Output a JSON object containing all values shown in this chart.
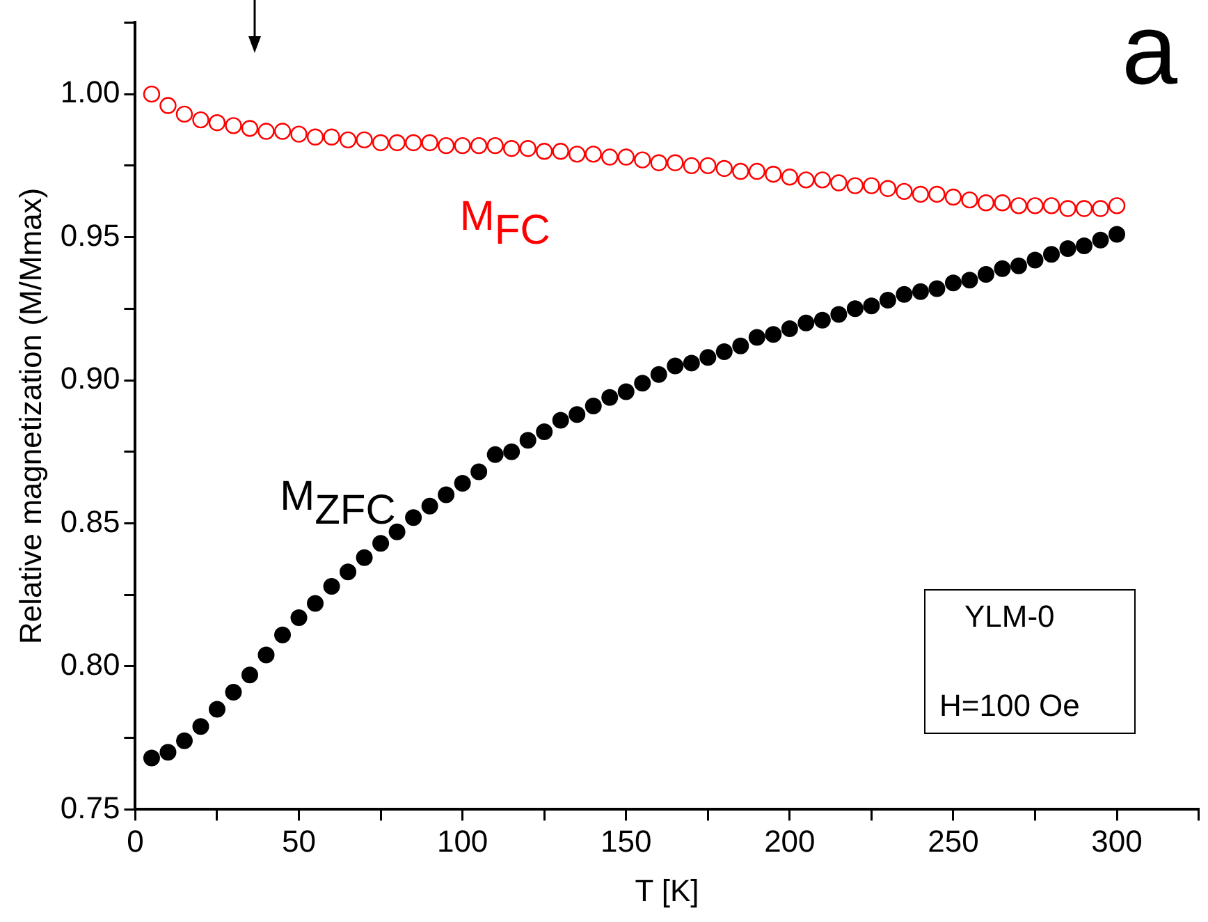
{
  "chart_data": {
    "type": "scatter",
    "xlabel": "T [K]",
    "ylabel": "Relative magnetization (M/Mmax)",
    "x": [
      5,
      10,
      15,
      20,
      25,
      30,
      35,
      40,
      45,
      50,
      55,
      60,
      65,
      70,
      75,
      80,
      85,
      90,
      95,
      100,
      105,
      110,
      115,
      120,
      125,
      130,
      135,
      140,
      145,
      150,
      155,
      160,
      165,
      170,
      175,
      180,
      185,
      190,
      195,
      200,
      205,
      210,
      215,
      220,
      225,
      230,
      235,
      240,
      245,
      250,
      255,
      260,
      265,
      270,
      275,
      280,
      285,
      290,
      295,
      300
    ],
    "series": [
      {
        "name": "M$_{FC}$",
        "color": "#ff0000",
        "values": [
          1.0,
          0.996,
          0.993,
          0.991,
          0.99,
          0.989,
          0.988,
          0.987,
          0.987,
          0.986,
          0.985,
          0.985,
          0.984,
          0.984,
          0.983,
          0.983,
          0.983,
          0.983,
          0.982,
          0.982,
          0.982,
          0.982,
          0.981,
          0.981,
          0.98,
          0.98,
          0.979,
          0.979,
          0.978,
          0.978,
          0.977,
          0.976,
          0.976,
          0.975,
          0.975,
          0.974,
          0.973,
          0.973,
          0.972,
          0.971,
          0.97,
          0.97,
          0.969,
          0.968,
          0.968,
          0.967,
          0.966,
          0.965,
          0.965,
          0.964,
          0.963,
          0.962,
          0.962,
          0.961,
          0.961,
          0.961,
          0.96,
          0.96,
          0.96,
          0.961
        ]
      },
      {
        "name": "M$_{ZFC}$",
        "color": "#000000",
        "values": [
          0.768,
          0.77,
          0.774,
          0.779,
          0.785,
          0.791,
          0.797,
          0.804,
          0.811,
          0.817,
          0.822,
          0.828,
          0.833,
          0.838,
          0.843,
          0.847,
          0.852,
          0.856,
          0.86,
          0.864,
          0.868,
          0.874,
          0.875,
          0.879,
          0.882,
          0.886,
          0.888,
          0.891,
          0.894,
          0.896,
          0.899,
          0.902,
          0.905,
          0.906,
          0.908,
          0.91,
          0.912,
          0.915,
          0.916,
          0.918,
          0.92,
          0.921,
          0.923,
          0.925,
          0.926,
          0.928,
          0.93,
          0.931,
          0.932,
          0.934,
          0.935,
          0.937,
          0.939,
          0.94,
          0.942,
          0.944,
          0.946,
          0.947,
          0.949,
          0.951
        ]
      }
    ],
    "xlim": [
      0,
      325
    ],
    "xticks": [
      0,
      {
        "value": 25,
        "label": null
      },
      50,
      {
        "value": 75,
        "label": null
      },
      100,
      {
        "value": 125,
        "label": null
      },
      150,
      {
        "value": 175,
        "label": null
      },
      200,
      {
        "value": 225,
        "label": null
      },
      250,
      {
        "value": 275,
        "label": null
      },
      300,
      {
        "value": 325,
        "label": null
      }
    ],
    "ylim": [
      0.75,
      1.025
    ],
    "yticks": [
      {
        "value": 0.75,
        "label": "0.75"
      },
      {
        "value": 0.775,
        "label": null
      },
      {
        "value": 0.8,
        "label": "0.80"
      },
      {
        "value": 0.825,
        "label": null
      },
      {
        "value": 0.85,
        "label": "0.85"
      },
      {
        "value": 0.875,
        "label": null
      },
      {
        "value": 0.9,
        "label": "0.90"
      },
      {
        "value": 0.925,
        "label": null
      },
      {
        "value": 0.95,
        "label": "0.95"
      },
      {
        "value": 0.975,
        "label": null
      },
      {
        "value": 1.0,
        "label": "1.00"
      },
      {
        "value": 1.025,
        "label": null
      }
    ],
    "marker": "circle",
    "grid": false,
    "legend": false,
    "annotations": [
      "a",
      "YLM-0",
      "H=100 Oe"
    ]
  }
}
